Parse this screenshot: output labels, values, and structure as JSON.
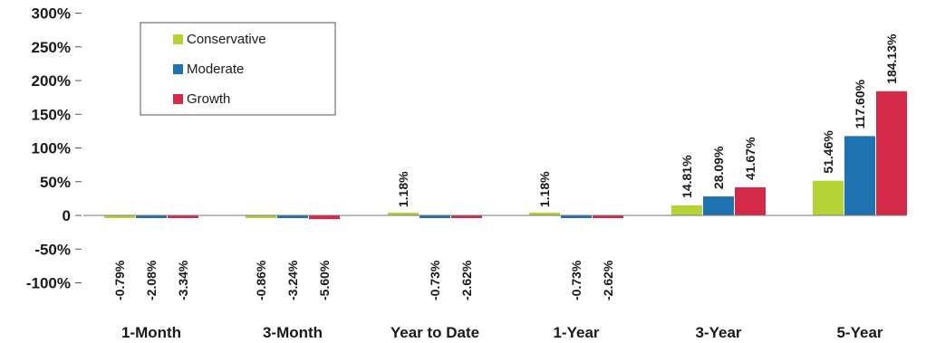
{
  "chart_data": {
    "type": "bar",
    "title": "",
    "xlabel": "",
    "ylabel": "",
    "categories": [
      "1-Month",
      "3-Month",
      "Year to Date",
      "1-Year",
      "3-Year",
      "5-Year"
    ],
    "series": [
      {
        "name": "Conservative",
        "color": "#b5d334",
        "values": [
          -0.79,
          -0.86,
          1.18,
          1.18,
          14.81,
          51.46
        ],
        "labels": [
          "-0.79%",
          "-0.86%",
          "1.18%",
          "1.18%",
          "14.81%",
          "51.46%"
        ]
      },
      {
        "name": "Moderate",
        "color": "#1f72b0",
        "values": [
          -2.08,
          -3.24,
          -0.73,
          -0.73,
          28.09,
          117.6
        ],
        "labels": [
          "-2.08%",
          "-3.24%",
          "-0.73%",
          "-0.73%",
          "28.09%",
          "117.60%"
        ]
      },
      {
        "name": "Growth",
        "color": "#d22a48",
        "values": [
          -3.34,
          -5.6,
          -2.62,
          -2.62,
          41.67,
          184.13
        ],
        "labels": [
          "-3.34%",
          "-5.60%",
          "-2.62%",
          "-2.62%",
          "41.67%",
          "184.13%"
        ]
      }
    ],
    "yticks": [
      300,
      250,
      200,
      150,
      100,
      50,
      0,
      -50,
      -100
    ],
    "ytick_labels": [
      "300%",
      "250%",
      "200%",
      "150%",
      "100%",
      "50%",
      "0",
      "-50%",
      "-100%"
    ],
    "ylim": [
      -100,
      300
    ],
    "grid": false,
    "legend_position": "top-left"
  }
}
